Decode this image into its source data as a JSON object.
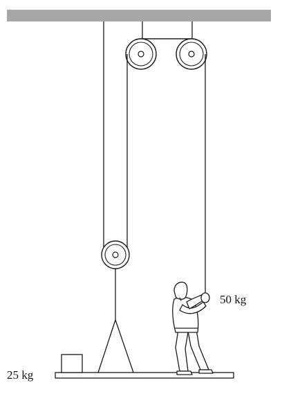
{
  "labels": {
    "person_mass": "50 kg",
    "box_mass": "25 kg"
  },
  "colors": {
    "ceiling": "#a7a7a7",
    "ink": "#1a1a1a",
    "background": "#ffffff"
  }
}
